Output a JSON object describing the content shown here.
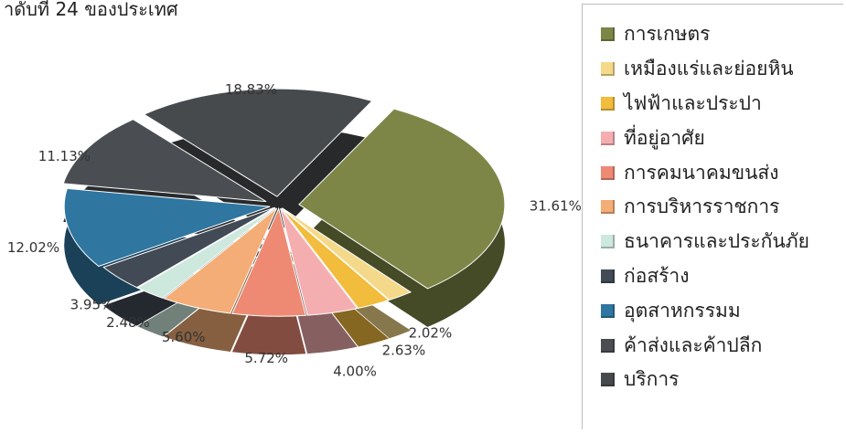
{
  "heading": "าดับที่ 24 ของประเทศ",
  "chart_data": {
    "type": "pie",
    "legend_position": "right",
    "labels": [
      "การเกษตร",
      "เหมืองแร่และย่อยหิน",
      "ไฟฟ้าและประปา",
      "ที่อยู่อาศัย",
      "การคมนาคมขนส่ง",
      "การบริหารราชการ",
      "ธนาคารและประกันภัย",
      "ก่อสร้าง",
      "อุตสาหกรรมม",
      "ค้าส่งและค้าปลีก",
      "บริการ"
    ],
    "values": [
      31.61,
      2.02,
      2.63,
      4.0,
      5.72,
      5.6,
      2.48,
      3.95,
      12.02,
      11.13,
      18.83
    ],
    "value_labels": [
      "31.61%",
      "2.02%",
      "2.63%",
      "4.00%",
      "5.72%",
      "5.60%",
      "2.48%",
      "3.95%",
      "12.02%",
      "11.13%",
      "18.83%"
    ],
    "colors": [
      "#7d8646",
      "#f5d98a",
      "#f2bc3c",
      "#f4aeb0",
      "#ee8a74",
      "#f4ad76",
      "#cde8dc",
      "#414a55",
      "#2f76a0",
      "#4a4e52",
      "#474a4d"
    ]
  }
}
